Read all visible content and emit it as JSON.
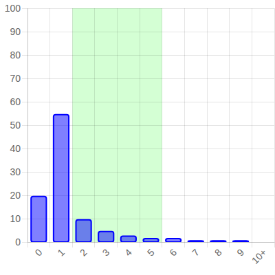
{
  "chart_data": {
    "type": "bar",
    "categories": [
      "0",
      "1",
      "2",
      "3",
      "4",
      "5",
      "6",
      "7",
      "8",
      "9",
      "10+"
    ],
    "values": [
      19.5,
      54.5,
      9.5,
      4.5,
      2.5,
      1.5,
      1.5,
      0.5,
      0.5,
      0.5,
      0
    ],
    "color": "#0000ff",
    "shaded_categories": [
      "2",
      "5"
    ],
    "ylim": [
      0,
      100
    ],
    "yticks": [
      0,
      10,
      20,
      30,
      40,
      50,
      60,
      70,
      80,
      90,
      100
    ],
    "grid": true
  }
}
